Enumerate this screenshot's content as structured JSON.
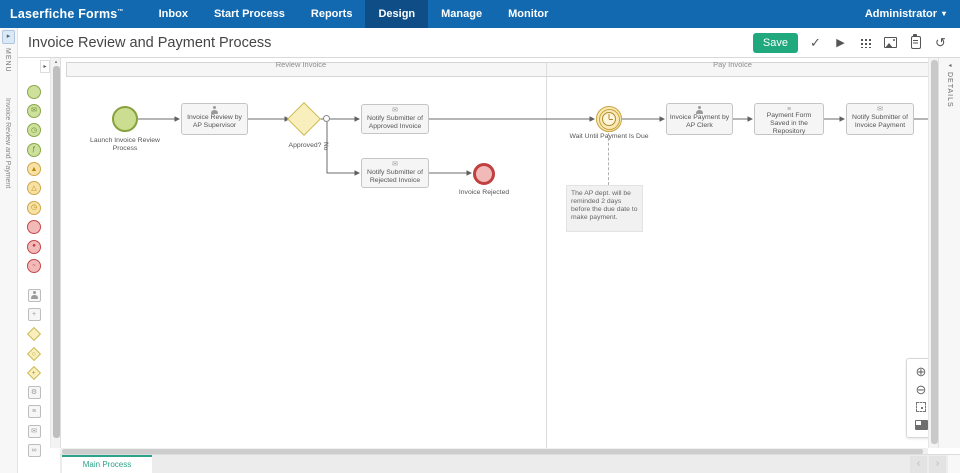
{
  "navbar": {
    "brand": "Laserfiche Forms",
    "trademark": "™",
    "items": [
      "Inbox",
      "Start Process",
      "Reports",
      "Design",
      "Manage",
      "Monitor"
    ],
    "active_item": "Design",
    "user_menu": "Administrator"
  },
  "header": {
    "title": "Invoice Review and Payment Process",
    "save_button": "Save"
  },
  "left_rail": {
    "menu_label": "MENU",
    "process_name": "Invoice Review and Payment"
  },
  "palette": {
    "items": [
      {
        "name": "start-event",
        "shape": "circle-green"
      },
      {
        "name": "message-start-event",
        "shape": "circle-green",
        "glyph": "✉"
      },
      {
        "name": "timer-start-event",
        "shape": "circle-green",
        "glyph": "◷"
      },
      {
        "name": "script-start-event",
        "shape": "circle-green",
        "glyph": "ƒ"
      },
      {
        "name": "throw-message-intermediate-event",
        "shape": "circle-orange",
        "glyph": "▲"
      },
      {
        "name": "catch-message-intermediate-event",
        "shape": "circle-orange",
        "glyph": "△"
      },
      {
        "name": "timer-intermediate-event",
        "shape": "circle-orange",
        "glyph": "◷"
      },
      {
        "name": "end-event",
        "shape": "circle-red"
      },
      {
        "name": "terminate-end-event",
        "shape": "circle-red",
        "glyph": "●"
      },
      {
        "name": "error-end-event",
        "shape": "circle-red",
        "glyph": "~"
      },
      {
        "name": "user-task",
        "shape": "square-gray",
        "person": true,
        "gap": true
      },
      {
        "name": "subprocess",
        "shape": "square-gray",
        "glyph": "+"
      },
      {
        "name": "exclusive-gateway",
        "shape": "diamond-yellow"
      },
      {
        "name": "inclusive-gateway",
        "shape": "diamond-yellow",
        "glyph": "○"
      },
      {
        "name": "parallel-gateway",
        "shape": "diamond-yellow",
        "glyph": "+"
      },
      {
        "name": "service-task",
        "shape": "square-gray",
        "glyph": "⚙"
      },
      {
        "name": "business-rule-task",
        "shape": "square-gray",
        "glyph": "≡"
      },
      {
        "name": "email-task",
        "shape": "square-gray",
        "glyph": "✉"
      },
      {
        "name": "link-task",
        "shape": "square-gray",
        "glyph": "∞"
      }
    ]
  },
  "canvas": {
    "lanes": [
      "Review Invoice",
      "Pay Invoice"
    ],
    "nodes": {
      "start": "Launch Invoice Review Process",
      "task_review": "Invoice Review by AP Supervisor",
      "gateway": "Approved?",
      "gateway_no": "No",
      "task_notify_approved": "Notify Submitter of Approved Invoice",
      "task_notify_rejected": "Notify Submitter of Rejected Invoice",
      "end_rejected": "Invoice Rejected",
      "timer": "Wait Until Payment Is Due",
      "annotation": "The AP dept. will be reminded 2 days before the due date to make payment.",
      "task_payment": "Invoice Payment by AP Clerk",
      "task_repository": "Payment Form Saved in the Repository",
      "task_notify_payment": "Notify Submitter of Invoice Payment"
    }
  },
  "details_panel": {
    "label": "DETAILS"
  },
  "footer": {
    "tab": "Main Process"
  },
  "icons": {
    "caret_down": "▾",
    "check": "✓",
    "play": "▶",
    "undo": "↺",
    "collapse_right": "▸",
    "collapse_left": "◂",
    "scroll_up": "▴",
    "zoom_in": "⊕",
    "zoom_out": "⊖",
    "chevron_left": "‹",
    "chevron_right": "›"
  },
  "colors": {
    "navbar_bg": "#1269b0",
    "navbar_active_bg": "#0e4d85",
    "save_green": "#1fa97c",
    "tab_teal": "#2aa388",
    "start_fill": "#cbdd90",
    "start_border": "#87a13d",
    "timer_fill": "#f8e9b5",
    "timer_border": "#c9a23c",
    "gateway_fill": "#f9efbc",
    "gateway_border": "#cdbb5a",
    "end_fill": "#f2b9b9",
    "end_border": "#c04040"
  }
}
